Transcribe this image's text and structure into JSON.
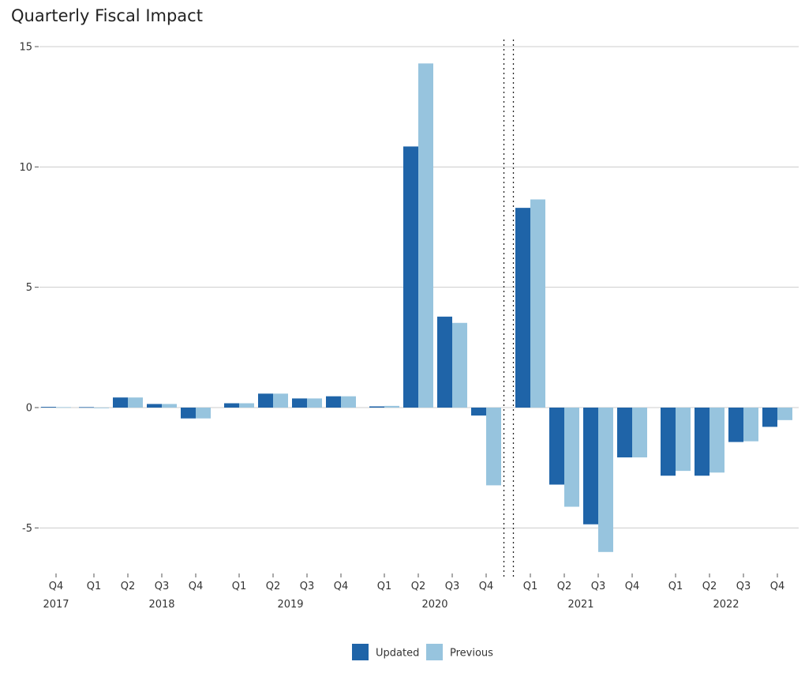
{
  "chart_data": {
    "type": "bar",
    "title": "Quarterly Fiscal Impact",
    "xlabel": "",
    "ylabel": "",
    "ylim": [
      -7,
      15
    ],
    "y_ticks": [
      15,
      10,
      5,
      0,
      -5
    ],
    "y_tick_labels": [
      "15",
      "10",
      "5",
      "0",
      "-5"
    ],
    "grid": "horizontal",
    "legend_position": "bottom-center",
    "colors": {
      "Updated": "#1f64a8",
      "Previous": "#97c4de"
    },
    "categories": [
      "Q4",
      "Q1",
      "Q2",
      "Q3",
      "Q4",
      "Q1",
      "Q2",
      "Q3",
      "Q4",
      "Q1",
      "Q2",
      "Q3",
      "Q4",
      "Q1",
      "Q2",
      "Q3",
      "Q4",
      "Q1",
      "Q2",
      "Q3",
      "Q4"
    ],
    "year_labels": [
      {
        "label": "2017",
        "quarters": [
          "Q4"
        ]
      },
      {
        "label": "2018",
        "quarters": [
          "Q1",
          "Q2",
          "Q3",
          "Q4"
        ]
      },
      {
        "label": "2019",
        "quarters": [
          "Q1",
          "Q2",
          "Q3",
          "Q4"
        ]
      },
      {
        "label": "2020",
        "quarters": [
          "Q1",
          "Q2",
          "Q3",
          "Q4"
        ]
      },
      {
        "label": "2021",
        "quarters": [
          "Q1",
          "Q2",
          "Q3",
          "Q4"
        ]
      },
      {
        "label": "2022",
        "quarters": [
          "Q1",
          "Q2",
          "Q3",
          "Q4"
        ]
      }
    ],
    "series": [
      {
        "name": "Updated",
        "values": [
          0.03,
          0.02,
          0.42,
          0.15,
          -0.45,
          0.18,
          0.58,
          0.38,
          0.47,
          0.05,
          10.85,
          3.78,
          -0.33,
          8.3,
          -3.2,
          -4.85,
          -2.07,
          -2.83,
          -2.83,
          -1.43,
          -0.8
        ]
      },
      {
        "name": "Previous",
        "values": [
          0.02,
          0.0,
          0.42,
          0.15,
          -0.45,
          0.18,
          0.58,
          0.38,
          0.47,
          0.07,
          14.3,
          3.52,
          -3.23,
          8.65,
          -4.12,
          -6.0,
          -2.07,
          -2.63,
          -2.7,
          -1.4,
          -0.52
        ]
      }
    ],
    "annotations": [
      "vertical dotted lines between 2020 Q4 and 2021 Q1"
    ]
  }
}
